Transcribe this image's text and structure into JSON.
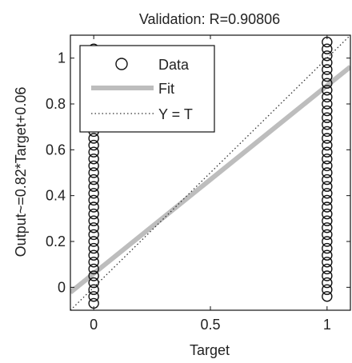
{
  "chart_data": {
    "type": "scatter",
    "title": "Validation: R=0.90806",
    "xlabel": "Target",
    "ylabel": "Output~=0.82*Target+0.06",
    "xlim": [
      -0.1,
      1.1
    ],
    "ylim": [
      -0.1,
      1.1
    ],
    "x_ticks": [
      0,
      0.5,
      1
    ],
    "x_tick_labels": [
      "0",
      "0.5",
      "1"
    ],
    "y_ticks": [
      0,
      0.2,
      0.4,
      0.6,
      0.8,
      1
    ],
    "y_tick_labels": [
      "0",
      "0.2",
      "0.4",
      "0.6",
      "0.8",
      "1"
    ],
    "grid": false,
    "legend": {
      "placement": "top-left",
      "entries": [
        {
          "label": "Data",
          "marker": "circle"
        },
        {
          "label": "Fit",
          "marker": "thick-line"
        },
        {
          "label": "Y = T",
          "marker": "dotted-line"
        }
      ]
    },
    "series": [
      {
        "name": "Data",
        "style": "circle",
        "color": "#111111",
        "points": [
          {
            "x": 0,
            "y": -0.07
          },
          {
            "x": 0,
            "y": -0.04
          },
          {
            "x": 0,
            "y": -0.01
          },
          {
            "x": 0,
            "y": 0.02
          },
          {
            "x": 0,
            "y": 0.05
          },
          {
            "x": 0,
            "y": 0.08
          },
          {
            "x": 0,
            "y": 0.11
          },
          {
            "x": 0,
            "y": 0.14
          },
          {
            "x": 0,
            "y": 0.17
          },
          {
            "x": 0,
            "y": 0.2
          },
          {
            "x": 0,
            "y": 0.23
          },
          {
            "x": 0,
            "y": 0.26
          },
          {
            "x": 0,
            "y": 0.29
          },
          {
            "x": 0,
            "y": 0.32
          },
          {
            "x": 0,
            "y": 0.35
          },
          {
            "x": 0,
            "y": 0.38
          },
          {
            "x": 0,
            "y": 0.41
          },
          {
            "x": 0,
            "y": 0.44
          },
          {
            "x": 0,
            "y": 0.47
          },
          {
            "x": 0,
            "y": 0.5
          },
          {
            "x": 0,
            "y": 0.53
          },
          {
            "x": 0,
            "y": 0.56
          },
          {
            "x": 0,
            "y": 0.59
          },
          {
            "x": 0,
            "y": 0.62
          },
          {
            "x": 0,
            "y": 0.65
          },
          {
            "x": 0,
            "y": 0.68
          },
          {
            "x": 0,
            "y": 0.71
          },
          {
            "x": 0,
            "y": 0.74
          },
          {
            "x": 0,
            "y": 0.77
          },
          {
            "x": 0,
            "y": 0.8
          },
          {
            "x": 0,
            "y": 0.83
          },
          {
            "x": 0,
            "y": 0.86
          },
          {
            "x": 0,
            "y": 0.89
          },
          {
            "x": 0,
            "y": 0.92
          },
          {
            "x": 0,
            "y": 0.95
          },
          {
            "x": 0,
            "y": 0.98
          },
          {
            "x": 0,
            "y": 1.01
          },
          {
            "x": 0,
            "y": 1.04
          },
          {
            "x": 1,
            "y": -0.04
          },
          {
            "x": 1,
            "y": -0.01
          },
          {
            "x": 1,
            "y": 0.02
          },
          {
            "x": 1,
            "y": 0.05
          },
          {
            "x": 1,
            "y": 0.08
          },
          {
            "x": 1,
            "y": 0.11
          },
          {
            "x": 1,
            "y": 0.14
          },
          {
            "x": 1,
            "y": 0.17
          },
          {
            "x": 1,
            "y": 0.2
          },
          {
            "x": 1,
            "y": 0.23
          },
          {
            "x": 1,
            "y": 0.26
          },
          {
            "x": 1,
            "y": 0.29
          },
          {
            "x": 1,
            "y": 0.32
          },
          {
            "x": 1,
            "y": 0.35
          },
          {
            "x": 1,
            "y": 0.38
          },
          {
            "x": 1,
            "y": 0.41
          },
          {
            "x": 1,
            "y": 0.44
          },
          {
            "x": 1,
            "y": 0.47
          },
          {
            "x": 1,
            "y": 0.5
          },
          {
            "x": 1,
            "y": 0.53
          },
          {
            "x": 1,
            "y": 0.56
          },
          {
            "x": 1,
            "y": 0.59
          },
          {
            "x": 1,
            "y": 0.62
          },
          {
            "x": 1,
            "y": 0.65
          },
          {
            "x": 1,
            "y": 0.68
          },
          {
            "x": 1,
            "y": 0.71
          },
          {
            "x": 1,
            "y": 0.74
          },
          {
            "x": 1,
            "y": 0.77
          },
          {
            "x": 1,
            "y": 0.8
          },
          {
            "x": 1,
            "y": 0.83
          },
          {
            "x": 1,
            "y": 0.86
          },
          {
            "x": 1,
            "y": 0.89
          },
          {
            "x": 1,
            "y": 0.92
          },
          {
            "x": 1,
            "y": 0.95
          },
          {
            "x": 1,
            "y": 0.98
          },
          {
            "x": 1,
            "y": 1.01
          },
          {
            "x": 1,
            "y": 1.04
          },
          {
            "x": 1,
            "y": 1.07
          }
        ]
      },
      {
        "name": "Fit",
        "style": "line",
        "color": "#bdbdbd",
        "slope": 0.82,
        "intercept": 0.06,
        "x_range": [
          -0.1,
          1.1
        ]
      },
      {
        "name": "Y = T",
        "style": "dotted",
        "color": "#333333",
        "slope": 1,
        "intercept": 0,
        "x_range": [
          -0.1,
          1.1
        ]
      }
    ]
  }
}
